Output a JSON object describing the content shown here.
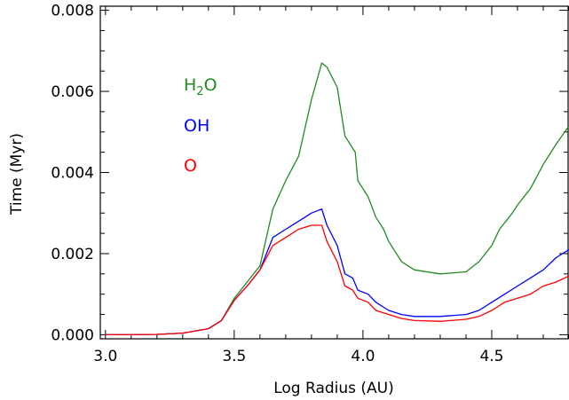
{
  "chart_data": {
    "type": "line",
    "xlabel": "Log Radius (AU)",
    "ylabel": "Time (Myr)",
    "xlim": [
      2.98,
      4.8
    ],
    "ylim": [
      -0.0001,
      0.0081
    ],
    "x_ticks": [
      "3.0",
      "3.5",
      "4.0",
      "4.5"
    ],
    "x_tick_values": [
      3.0,
      3.5,
      4.0,
      4.5
    ],
    "y_ticks": [
      "0.000",
      "0.002",
      "0.004",
      "0.006",
      "0.008"
    ],
    "y_tick_values": [
      0.0,
      0.002,
      0.004,
      0.006,
      0.008
    ],
    "legend_placement": "top-left",
    "series": [
      {
        "name": "H",
        "name_sub": "2",
        "name_suffix": "O",
        "color": "#228b22",
        "points": [
          [
            3.0,
            0.0
          ],
          [
            3.1,
            0.0
          ],
          [
            3.2,
            1e-05
          ],
          [
            3.3,
            4e-05
          ],
          [
            3.4,
            0.00015
          ],
          [
            3.45,
            0.00035
          ],
          [
            3.5,
            0.0009
          ],
          [
            3.55,
            0.0013
          ],
          [
            3.6,
            0.0017
          ],
          [
            3.65,
            0.0031
          ],
          [
            3.7,
            0.0038
          ],
          [
            3.75,
            0.0044
          ],
          [
            3.8,
            0.0058
          ],
          [
            3.84,
            0.0067
          ],
          [
            3.86,
            0.0066
          ],
          [
            3.9,
            0.0061
          ],
          [
            3.93,
            0.0049
          ],
          [
            3.97,
            0.0045
          ],
          [
            3.98,
            0.0038
          ],
          [
            4.02,
            0.0034
          ],
          [
            4.05,
            0.0029
          ],
          [
            4.08,
            0.0026
          ],
          [
            4.1,
            0.0023
          ],
          [
            4.15,
            0.0018
          ],
          [
            4.2,
            0.0016
          ],
          [
            4.3,
            0.0015
          ],
          [
            4.4,
            0.00155
          ],
          [
            4.45,
            0.0018
          ],
          [
            4.5,
            0.0022
          ],
          [
            4.53,
            0.0026
          ],
          [
            4.58,
            0.003
          ],
          [
            4.6,
            0.0032
          ],
          [
            4.65,
            0.0036
          ],
          [
            4.7,
            0.0042
          ],
          [
            4.75,
            0.0047
          ],
          [
            4.8,
            0.00515
          ]
        ]
      },
      {
        "name": "OH",
        "color": "#0000ff",
        "points": [
          [
            3.0,
            0.0
          ],
          [
            3.1,
            0.0
          ],
          [
            3.2,
            1e-05
          ],
          [
            3.3,
            4e-05
          ],
          [
            3.4,
            0.00015
          ],
          [
            3.45,
            0.00035
          ],
          [
            3.5,
            0.00085
          ],
          [
            3.55,
            0.0012
          ],
          [
            3.6,
            0.0016
          ],
          [
            3.65,
            0.0024
          ],
          [
            3.7,
            0.0026
          ],
          [
            3.75,
            0.0028
          ],
          [
            3.8,
            0.003
          ],
          [
            3.84,
            0.0031
          ],
          [
            3.86,
            0.0027
          ],
          [
            3.9,
            0.0022
          ],
          [
            3.93,
            0.0015
          ],
          [
            3.96,
            0.0014
          ],
          [
            3.98,
            0.0011
          ],
          [
            4.02,
            0.001
          ],
          [
            4.05,
            0.0008
          ],
          [
            4.1,
            0.0006
          ],
          [
            4.15,
            0.0005
          ],
          [
            4.2,
            0.00045
          ],
          [
            4.3,
            0.00045
          ],
          [
            4.4,
            0.0005
          ],
          [
            4.45,
            0.0006
          ],
          [
            4.5,
            0.0008
          ],
          [
            4.55,
            0.001
          ],
          [
            4.6,
            0.0012
          ],
          [
            4.65,
            0.0014
          ],
          [
            4.7,
            0.0016
          ],
          [
            4.75,
            0.0019
          ],
          [
            4.8,
            0.0021
          ]
        ]
      },
      {
        "name": "O",
        "color": "#ff0000",
        "points": [
          [
            3.0,
            0.0
          ],
          [
            3.1,
            0.0
          ],
          [
            3.2,
            1e-05
          ],
          [
            3.3,
            4e-05
          ],
          [
            3.4,
            0.00015
          ],
          [
            3.45,
            0.00035
          ],
          [
            3.5,
            0.00085
          ],
          [
            3.55,
            0.0012
          ],
          [
            3.6,
            0.0016
          ],
          [
            3.65,
            0.0022
          ],
          [
            3.7,
            0.0024
          ],
          [
            3.75,
            0.0026
          ],
          [
            3.8,
            0.0027
          ],
          [
            3.84,
            0.0027
          ],
          [
            3.86,
            0.0023
          ],
          [
            3.9,
            0.0018
          ],
          [
            3.93,
            0.0012
          ],
          [
            3.96,
            0.0011
          ],
          [
            3.98,
            0.0009
          ],
          [
            4.02,
            0.0008
          ],
          [
            4.05,
            0.0006
          ],
          [
            4.1,
            0.0005
          ],
          [
            4.15,
            0.0004
          ],
          [
            4.2,
            0.00035
          ],
          [
            4.3,
            0.00033
          ],
          [
            4.4,
            0.00038
          ],
          [
            4.45,
            0.00045
          ],
          [
            4.5,
            0.0006
          ],
          [
            4.55,
            0.0008
          ],
          [
            4.6,
            0.0009
          ],
          [
            4.65,
            0.001
          ],
          [
            4.7,
            0.0012
          ],
          [
            4.75,
            0.0013
          ],
          [
            4.8,
            0.00145
          ]
        ]
      }
    ]
  }
}
